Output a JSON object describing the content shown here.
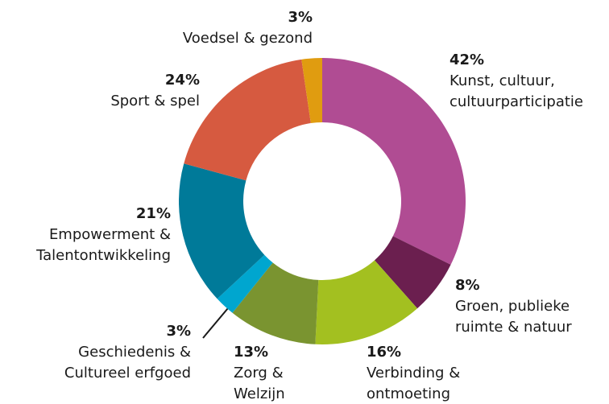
{
  "chart_data": {
    "type": "donut",
    "categories": [
      [
        "Kunst, cultuur,",
        "cultuurparticipatie"
      ],
      [
        "Groen, publieke",
        "ruimte & natuur"
      ],
      [
        "Verbinding &",
        "ontmoeting"
      ],
      [
        "Zorg &",
        "Welzijn"
      ],
      [
        "Geschiedenis &",
        "Cultureel erfgoed"
      ],
      [
        "Empowerment &",
        "Talentontwikkeling"
      ],
      [
        "Sport & spel"
      ],
      [
        "Voedsel & gezond"
      ]
    ],
    "values": [
      42,
      8,
      16,
      13,
      3,
      21,
      24,
      3
    ],
    "value_labels": [
      "42%",
      "8%",
      "16%",
      "13%",
      "3%",
      "21%",
      "24%",
      "3%"
    ],
    "colors": [
      "#b04c93",
      "#6b1f4f",
      "#a3c020",
      "#7a9430",
      "#00a6cf",
      "#007a99",
      "#d65a40",
      "#e09c10"
    ]
  }
}
